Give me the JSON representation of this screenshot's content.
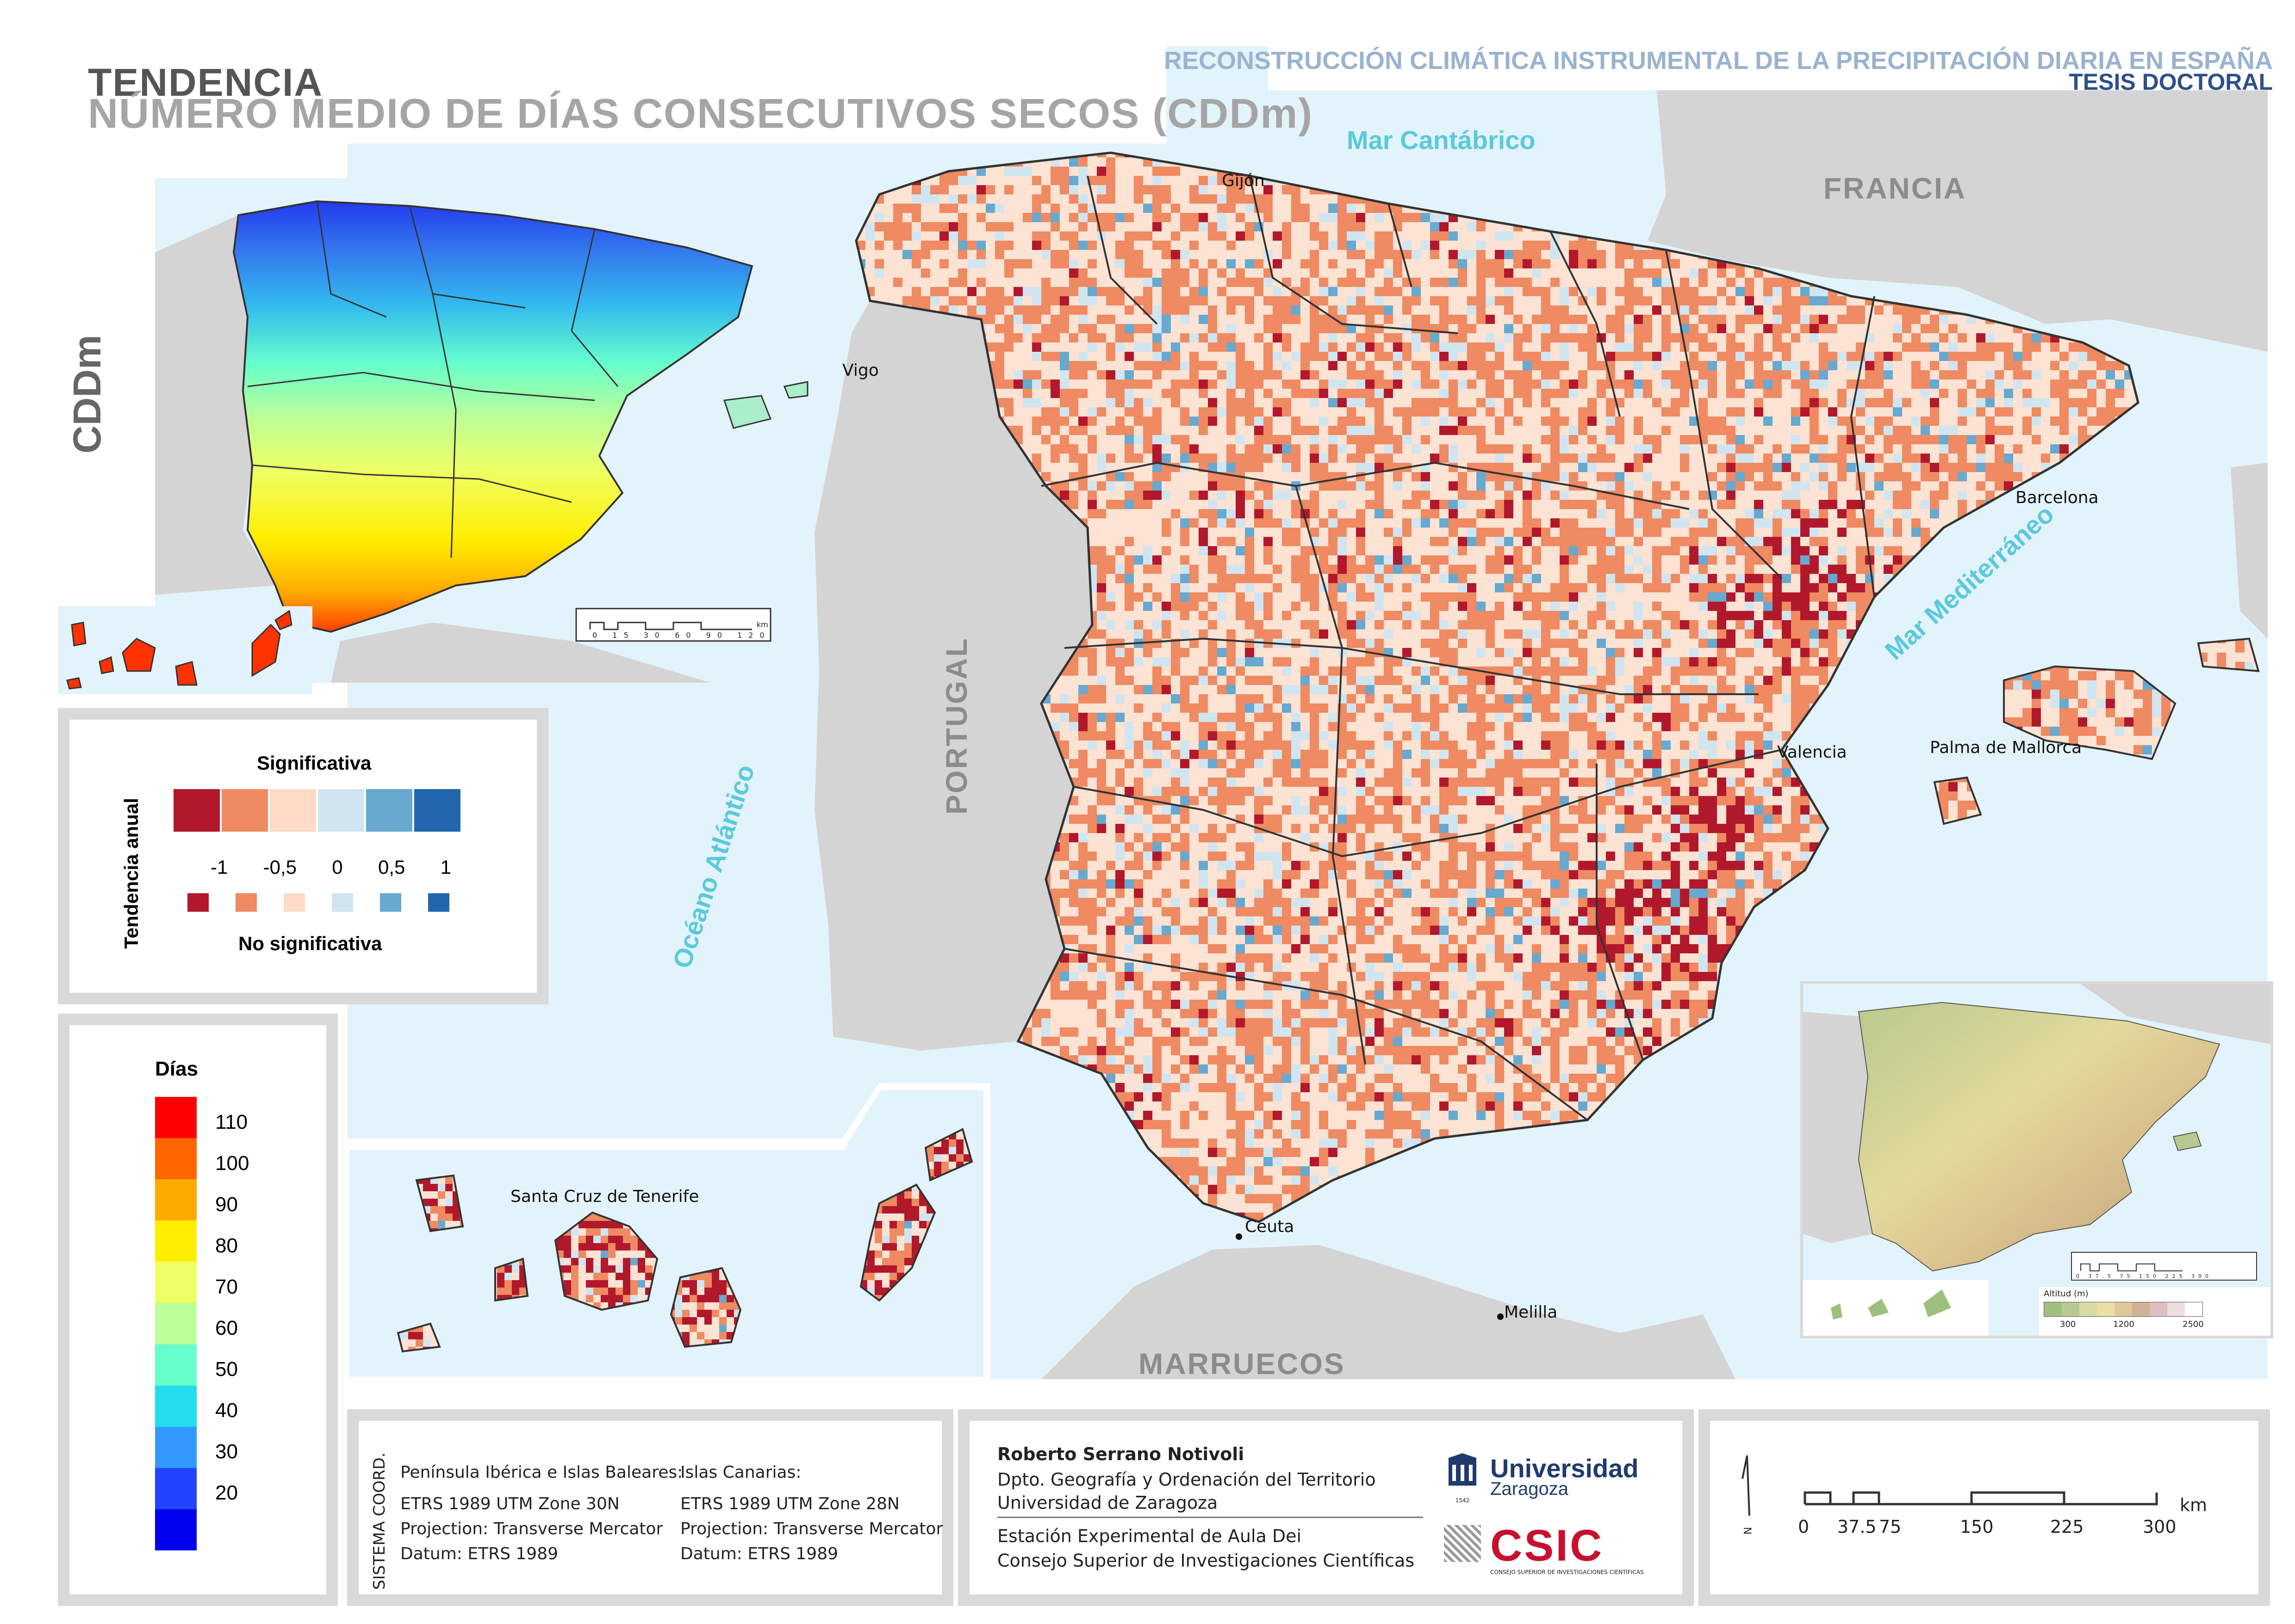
{
  "title": {
    "line1": "TENDENCIA",
    "line2": "NÚMERO MEDIO DE DÍAS CONSECUTIVOS SECOS (CDDm)"
  },
  "header": {
    "project": "RECONSTRUCCIÓN CLIMÁTICA INSTRUMENTAL DE LA PRECIPITACIÓN DIARIA EN ESPAÑA",
    "doc_type": "TESIS DOCTORAL"
  },
  "inset_label": "CDDm",
  "places": {
    "sea_cantabrico": "Mar Cantábrico",
    "sea_mediterraneo": "Mar Mediterráneo",
    "ocean_atlantico": "Océano Atlántico",
    "francia": "FRANCIA",
    "portugal": "PORTUGAL",
    "marruecos": "MARRUECOS",
    "gijon": "Gijón",
    "vigo": "Vigo",
    "barcelona": "Barcelona",
    "valencia": "Valencia",
    "palma": "Palma de Mallorca",
    "ceuta": "Ceuta",
    "melilla": "Melilla",
    "santa_cruz": "Santa Cruz de Tenerife"
  },
  "trend_legend": {
    "axis_title": "Tendencia anual",
    "significant_label": "Significativa",
    "not_significant_label": "No significativa",
    "ticks": [
      "-1",
      "-0,5",
      "0",
      "0,5",
      "1"
    ],
    "colors": [
      "#b2182b",
      "#ef8a62",
      "#fddbc7",
      "#d1e5f0",
      "#67a9cf",
      "#2166ac"
    ]
  },
  "days_legend": {
    "title": "Días",
    "values": [
      "110",
      "100",
      "90",
      "80",
      "70",
      "60",
      "50",
      "40",
      "30",
      "20"
    ],
    "colors": [
      "#ff0000",
      "#ff6600",
      "#ffaa00",
      "#ffee00",
      "#eeff66",
      "#bbff99",
      "#66ffcc",
      "#22ddee",
      "#3399ff",
      "#2244ff",
      "#0000ee"
    ]
  },
  "relief_legend": {
    "title": "Altitud (m)",
    "ticks": [
      "300",
      "1200",
      "2500"
    ]
  },
  "coords": {
    "side_label": "SISTEMA COORD.",
    "peninsula_title": "Península Ibérica e Islas Baleares:",
    "peninsula_zone": "ETRS 1989 UTM Zone 30N",
    "peninsula_projection": "Projection: Transverse Mercator",
    "peninsula_datum": "Datum: ETRS 1989",
    "canarias_title": "Islas Canarias:",
    "canarias_zone": "ETRS 1989 UTM Zone 28N",
    "canarias_projection": "Projection: Transverse Mercator",
    "canarias_datum": "Datum: ETRS 1989"
  },
  "author": {
    "name": "Roberto Serrano Notivoli",
    "dept": "Dpto. Geografía y Ordenación del Territorio",
    "univ": "Universidad de Zaragoza",
    "station": "Estación Experimental de Aula Dei",
    "csic": "Consejo Superior de Investigaciones Científicas"
  },
  "logos": {
    "unizar_line1": "Universidad",
    "unizar_line2": "Zaragoza",
    "unizar_year": "1542",
    "csic": "CSIC",
    "csic_sub": "CONSEJO SUPERIOR DE INVESTIGACIONES CIENTÍFICAS"
  },
  "scale": {
    "north": "N",
    "unit": "km",
    "ticks": [
      "0",
      "37.5",
      "75",
      "150",
      "225",
      "300"
    ]
  },
  "inset_scale": {
    "unit": "km",
    "ticks": [
      "0",
      "15",
      "30",
      "60",
      "90",
      "120"
    ]
  },
  "relief_scale": {
    "ticks": [
      "0",
      "37.5",
      "75",
      "150",
      "225",
      "300"
    ]
  }
}
